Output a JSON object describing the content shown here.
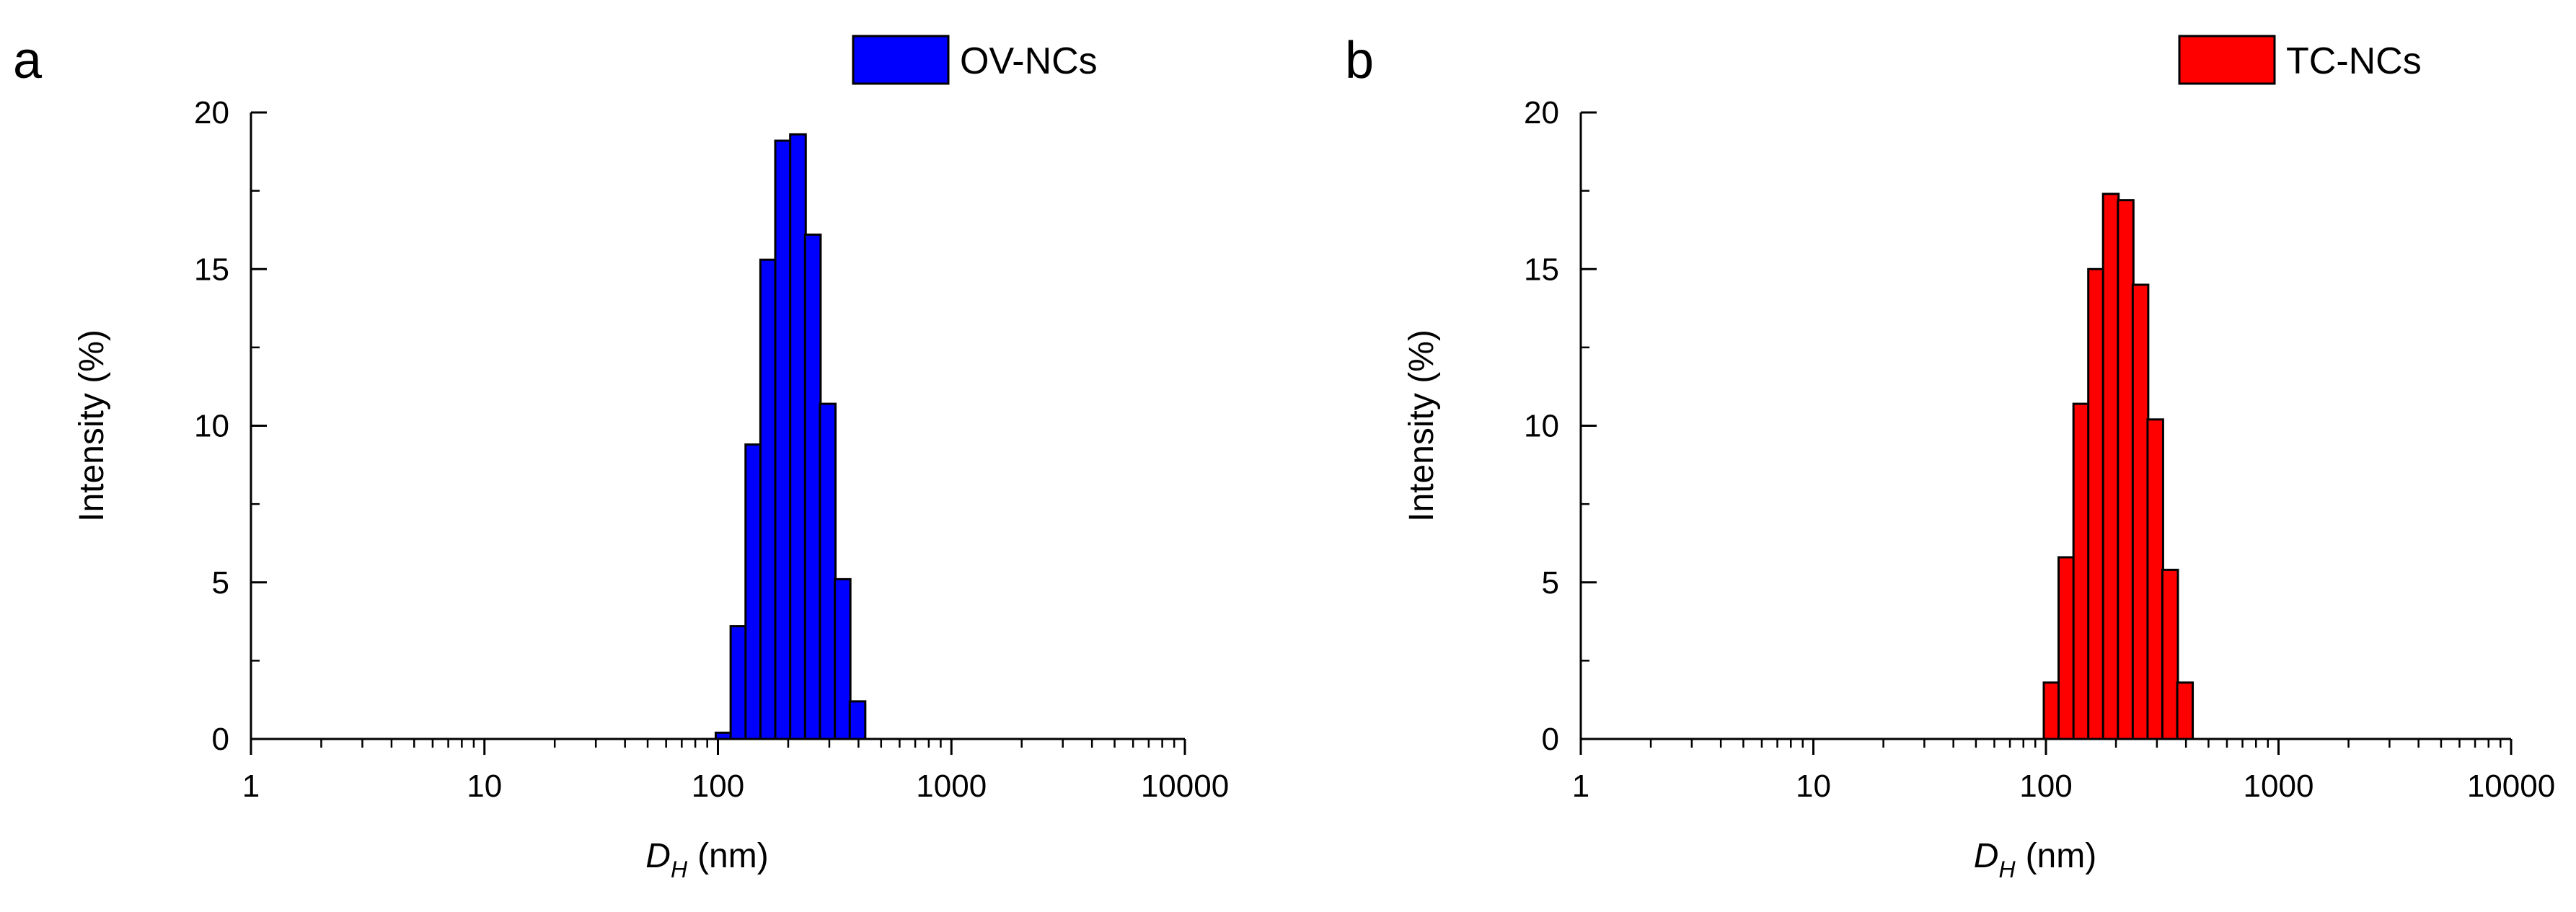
{
  "chart_data": [
    {
      "panel": "a",
      "type": "bar",
      "title": "",
      "xlabel_main": "D",
      "xlabel_sub": "H",
      "xlabel_unit": "(nm)",
      "ylabel": "Intensity (%)",
      "xscale": "log",
      "xlim": [
        1,
        10000
      ],
      "ylim": [
        0,
        20
      ],
      "x_ticks": [
        "1",
        "10",
        "100",
        "1000",
        "10000"
      ],
      "y_ticks": [
        "0",
        "5",
        "10",
        "15",
        "20"
      ],
      "legend": {
        "label": "OV-NCs",
        "color": "#0000ff",
        "position": "top-right"
      },
      "bin_log_width": 0.0667,
      "series": [
        {
          "name": "OV-NCs",
          "color": "#0000ff",
          "x": [
            105.7,
            122.4,
            141.8,
            164.2,
            190.1,
            220.2,
            255.0,
            295.3,
            342.0,
            396.1
          ],
          "values": [
            0.2,
            3.6,
            9.4,
            15.3,
            19.1,
            19.3,
            16.1,
            10.7,
            5.1,
            1.2
          ]
        }
      ]
    },
    {
      "panel": "b",
      "type": "bar",
      "title": "",
      "xlabel_main": "D",
      "xlabel_sub": "H",
      "xlabel_unit": "(nm)",
      "ylabel": "Intensity (%)",
      "xscale": "log",
      "xlim": [
        1,
        10000
      ],
      "ylim": [
        0,
        20
      ],
      "x_ticks": [
        "1",
        "10",
        "100",
        "1000",
        "10000"
      ],
      "y_ticks": [
        "0",
        "5",
        "10",
        "15",
        "20"
      ],
      "legend": {
        "label": "TC-NCs",
        "color": "#ff0000",
        "position": "top-right"
      },
      "bin_log_width": 0.0667,
      "series": [
        {
          "name": "TC-NCs",
          "color": "#ff0000",
          "x": [
            105.7,
            122.4,
            141.8,
            164.2,
            190.1,
            220.2,
            255.0,
            295.3,
            342.0,
            396.1
          ],
          "values": [
            1.8,
            5.8,
            10.7,
            15.0,
            17.4,
            17.2,
            14.5,
            10.2,
            5.4,
            1.8
          ]
        }
      ]
    }
  ]
}
